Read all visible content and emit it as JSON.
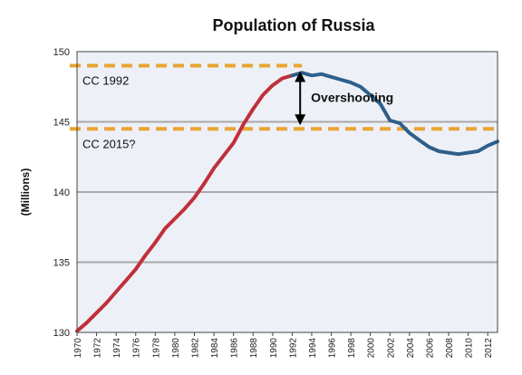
{
  "chart_data": {
    "type": "line",
    "title": "Population of Russia",
    "xlabel": "",
    "ylabel": "(Millions)",
    "xlim": [
      1970,
      2013
    ],
    "ylim": [
      130,
      150
    ],
    "yticks": [
      130,
      135,
      140,
      145,
      150
    ],
    "xticks": [
      1970,
      1972,
      1974,
      1976,
      1978,
      1980,
      1982,
      1984,
      1986,
      1988,
      1990,
      1992,
      1994,
      1996,
      1998,
      2000,
      2002,
      2004,
      2006,
      2008,
      2010,
      2012
    ],
    "grid": "horizontal",
    "series": [
      {
        "color": "#c0303a",
        "x": [
          1970,
          1971,
          1972,
          1973,
          1974,
          1975,
          1976,
          1977,
          1978,
          1979,
          1980,
          1981,
          1982,
          1983,
          1984,
          1985,
          1986,
          1987,
          1988,
          1989,
          1990,
          1991,
          1992
        ],
        "values": [
          130.1,
          130.7,
          131.4,
          132.1,
          132.9,
          133.7,
          134.5,
          135.5,
          136.4,
          137.4,
          138.1,
          138.8,
          139.6,
          140.6,
          141.7,
          142.6,
          143.5,
          144.8,
          145.9,
          146.9,
          147.6,
          148.1,
          148.3
        ]
      },
      {
        "color": "#2e5f8a",
        "x": [
          1992,
          1993,
          1994,
          1995,
          1996,
          1997,
          1998,
          1999,
          2000,
          2001,
          2002,
          2003,
          2004,
          2005,
          2006,
          2007,
          2008,
          2009,
          2010,
          2011,
          2012,
          2013
        ],
        "values": [
          148.3,
          148.5,
          148.3,
          148.4,
          148.2,
          148.0,
          147.8,
          147.5,
          146.9,
          146.3,
          145.1,
          144.9,
          144.2,
          143.7,
          143.2,
          142.9,
          142.8,
          142.7,
          142.8,
          142.9,
          143.3,
          143.6
        ]
      }
    ],
    "reference_lines": [
      {
        "label": "CC 1992",
        "value": 149.0,
        "color": "#e8a530",
        "style": "dashed"
      },
      {
        "label": "CC 2015?",
        "value": 144.5,
        "color": "#e8a530",
        "style": "dashed"
      }
    ],
    "annotation": {
      "text": "Overshooting",
      "x": 1993,
      "from": 144.5,
      "to": 149.0
    }
  },
  "colors": {
    "plot_bg": "#edf0f7",
    "grid": "#a9a9a9",
    "frame": "#444444"
  }
}
